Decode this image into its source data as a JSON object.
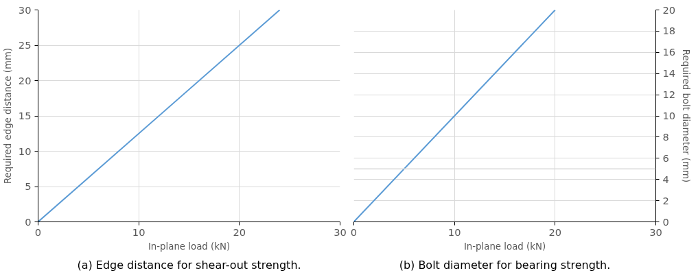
{
  "chart_data": [
    {
      "type": "line",
      "title": "(a) Edge distance for shear-out strength.",
      "xlabel": "In-plane load (kN)",
      "ylabel": "Required edge distance (mm)",
      "x": [
        0,
        24
      ],
      "series": [
        {
          "color": "#5b9bd5",
          "values": [
            0,
            30
          ]
        }
      ],
      "xlim": [
        0,
        30
      ],
      "xticks": [
        0,
        10,
        20,
        30
      ],
      "ylim": [
        0,
        30
      ],
      "yticks": [
        0,
        5,
        10,
        15,
        20,
        25,
        30
      ],
      "grid": true,
      "marker": "none",
      "line_style": "solid"
    },
    {
      "type": "line",
      "title": "(b) Bolt diameter for bearing strength.",
      "xlabel": "In-plane load (kN)",
      "y2label": "Required bolt diameter (mm)",
      "x": [
        0,
        20
      ],
      "series": [
        {
          "color": "#5b9bd5",
          "values": [
            0,
            20
          ],
          "axis": "y2"
        }
      ],
      "xlim": [
        0,
        30
      ],
      "xticks": [
        0,
        10,
        20,
        30
      ],
      "y2lim": [
        0,
        20
      ],
      "y2ticks": [
        0,
        2,
        4,
        6,
        8,
        10,
        12,
        14,
        16,
        18,
        20
      ],
      "grid": true,
      "marker": "none",
      "line_style": "solid",
      "ref_lines": [
        {
          "axis": "y2",
          "value": 5,
          "label": null,
          "color": "#d9d9d9"
        }
      ]
    }
  ]
}
